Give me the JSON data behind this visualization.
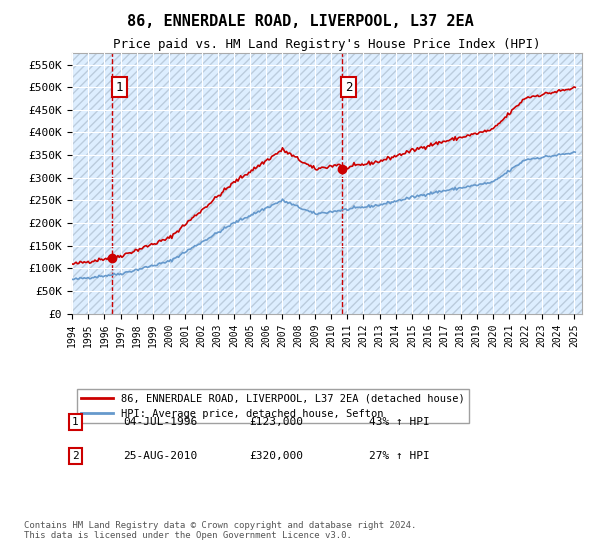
{
  "title": "86, ENNERDALE ROAD, LIVERPOOL, L37 2EA",
  "subtitle": "Price paid vs. HM Land Registry's House Price Index (HPI)",
  "ylim": [
    0,
    575000
  ],
  "yticks": [
    0,
    50000,
    100000,
    150000,
    200000,
    250000,
    300000,
    350000,
    400000,
    450000,
    500000,
    550000
  ],
  "xlim_start": 1994.0,
  "xlim_end": 2025.5,
  "sale1_year": 1996.5,
  "sale1_price": 123000,
  "sale2_year": 2010.65,
  "sale2_price": 320000,
  "red_line_color": "#cc0000",
  "blue_line_color": "#6699cc",
  "hpi_label": "HPI: Average price, detached house, Sefton",
  "property_label": "86, ENNERDALE ROAD, LIVERPOOL, L37 2EA (detached house)",
  "annotation1_label": "1",
  "annotation2_label": "2",
  "annotation1_date": "04-JUL-1996",
  "annotation1_price": "£123,000",
  "annotation1_hpi": "43% ↑ HPI",
  "annotation2_date": "25-AUG-2010",
  "annotation2_price": "£320,000",
  "annotation2_hpi": "27% ↑ HPI",
  "footnote": "Contains HM Land Registry data © Crown copyright and database right 2024.\nThis data is licensed under the Open Government Licence v3.0.",
  "bg_color": "#ddeeff",
  "hatch_color": "#bbccdd",
  "grid_color": "#ffffff",
  "outer_bg": "#ffffff"
}
